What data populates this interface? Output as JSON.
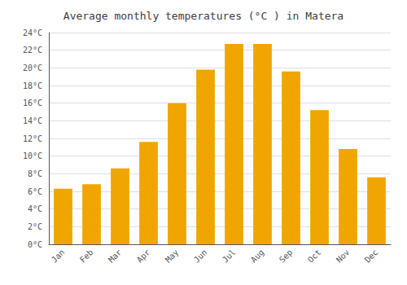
{
  "chart_data": {
    "type": "bar",
    "title": "Average monthly temperatures (°C ) in Matera",
    "categories": [
      "Jan",
      "Feb",
      "Mar",
      "Apr",
      "May",
      "Jun",
      "Jul",
      "Aug",
      "Sep",
      "Oct",
      "Nov",
      "Dec"
    ],
    "values": [
      6.3,
      6.8,
      8.6,
      11.6,
      16.0,
      19.8,
      22.7,
      22.7,
      19.6,
      15.2,
      10.8,
      7.6
    ],
    "color": "#F0A500",
    "ylim": [
      0,
      24
    ],
    "yticks": [
      {
        "value": 0,
        "label": "0°C"
      },
      {
        "value": 2,
        "label": "2°C"
      },
      {
        "value": 4,
        "label": "4°C"
      },
      {
        "value": 6,
        "label": "6°C"
      },
      {
        "value": 8,
        "label": "8°C"
      },
      {
        "value": 10,
        "label": "10°C"
      },
      {
        "value": 12,
        "label": "12°C"
      },
      {
        "value": 14,
        "label": "14°C"
      },
      {
        "value": 16,
        "label": "16°C"
      },
      {
        "value": 18,
        "label": "18°C"
      },
      {
        "value": 20,
        "label": "20°C"
      },
      {
        "value": 22,
        "label": "22°C"
      },
      {
        "value": 24,
        "label": "24°C"
      }
    ],
    "grid": true
  }
}
